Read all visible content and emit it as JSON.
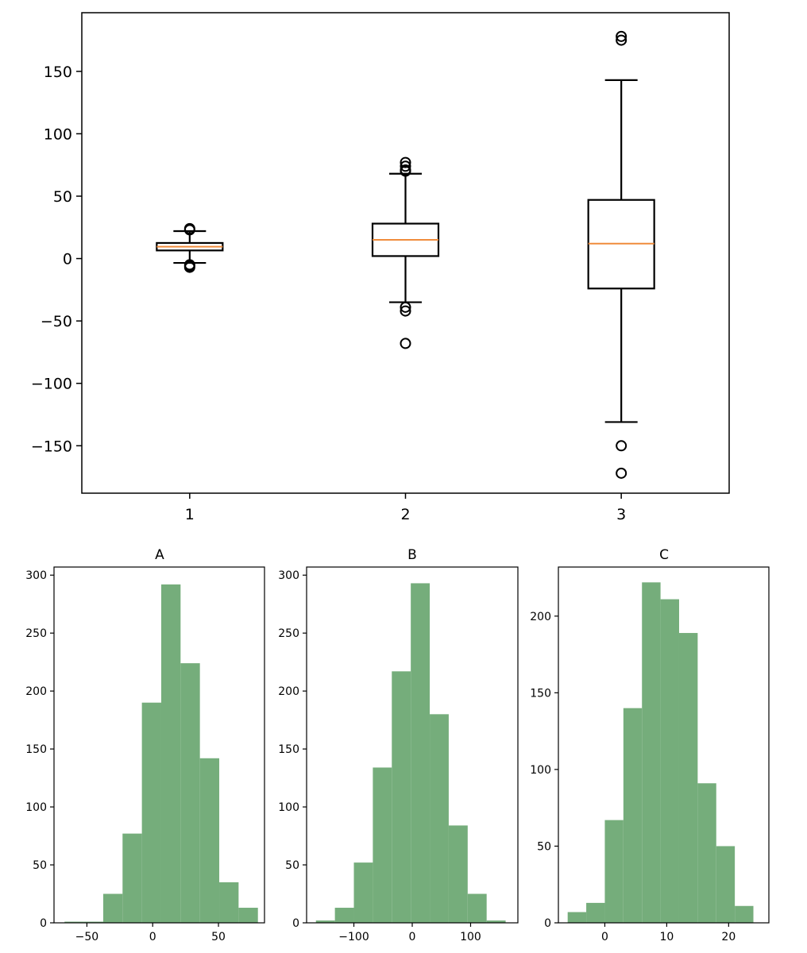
{
  "colors": {
    "box": "#000000",
    "median": "#f08c3c",
    "hist": "#75ad7b",
    "axes": "#000000",
    "background": "#ffffff"
  },
  "chart_data": [
    {
      "type": "box",
      "title": "",
      "xlabel": "",
      "ylabel": "",
      "categories": [
        "1",
        "2",
        "3"
      ],
      "ylim": [
        -188,
        197
      ],
      "yticks": [
        -150,
        -100,
        -50,
        0,
        50,
        100,
        150
      ],
      "ytick_labels": [
        "−150",
        "−100",
        "−50",
        "0",
        "50",
        "100",
        "150"
      ],
      "boxes": [
        {
          "label": "1",
          "whisker_low": -3.5,
          "q1": 6.5,
          "median": 9.5,
          "q3": 12.5,
          "whisker_high": 22,
          "fliers": [
            24,
            23,
            -5,
            -6,
            -7
          ]
        },
        {
          "label": "2",
          "whisker_low": -35,
          "q1": 2,
          "median": 15,
          "q3": 28,
          "whisker_high": 68,
          "fliers": [
            77,
            74,
            71,
            70,
            -39,
            -42,
            -68
          ]
        },
        {
          "label": "3",
          "whisker_low": -131,
          "q1": -24,
          "median": 12,
          "q3": 47,
          "whisker_high": 143,
          "fliers": [
            178,
            175,
            -150,
            -172
          ]
        }
      ]
    },
    {
      "type": "histogram",
      "title": "A",
      "xlim": [
        -75,
        85
      ],
      "ylim": [
        0,
        307
      ],
      "xticks": [
        -50,
        0,
        50
      ],
      "xtick_labels": [
        "−50",
        "0",
        "50"
      ],
      "yticks": [
        0,
        50,
        100,
        150,
        200,
        250,
        300
      ],
      "ytick_labels": [
        "0",
        "50",
        "100",
        "150",
        "200",
        "250",
        "300"
      ],
      "bin_edges": [
        -67,
        -52.3,
        -37.6,
        -22.9,
        -8.2,
        6.5,
        21.2,
        35.9,
        50.6,
        65.3,
        80
      ],
      "counts": [
        1,
        1,
        25,
        77,
        190,
        292,
        224,
        142,
        35,
        13
      ]
    },
    {
      "type": "histogram",
      "title": "B",
      "xlim": [
        -181,
        181
      ],
      "ylim": [
        0,
        307
      ],
      "xticks": [
        -100,
        0,
        100
      ],
      "xtick_labels": [
        "−100",
        "0",
        "100"
      ],
      "yticks": [
        0,
        50,
        100,
        150,
        200,
        250,
        300
      ],
      "ytick_labels": [
        "0",
        "50",
        "100",
        "150",
        "200",
        "250",
        "300"
      ],
      "bin_edges": [
        -165,
        -132.5,
        -100,
        -67.5,
        -35,
        -2.5,
        30,
        62.5,
        95,
        127.5,
        160
      ],
      "counts": [
        2,
        13,
        52,
        134,
        217,
        293,
        180,
        84,
        25,
        2
      ]
    },
    {
      "type": "histogram",
      "title": "C",
      "xlim": [
        -7.5,
        26.5
      ],
      "ylim": [
        0,
        232
      ],
      "xticks": [
        0,
        10,
        20
      ],
      "xtick_labels": [
        "0",
        "10",
        "20"
      ],
      "yticks": [
        0,
        50,
        100,
        150,
        200
      ],
      "ytick_labels": [
        "0",
        "50",
        "100",
        "150",
        "200"
      ],
      "bin_edges": [
        -6,
        -3,
        0,
        3,
        6,
        9,
        12,
        15,
        18,
        21,
        24
      ],
      "counts": [
        7,
        13,
        67,
        140,
        222,
        211,
        189,
        91,
        50,
        11
      ]
    }
  ]
}
